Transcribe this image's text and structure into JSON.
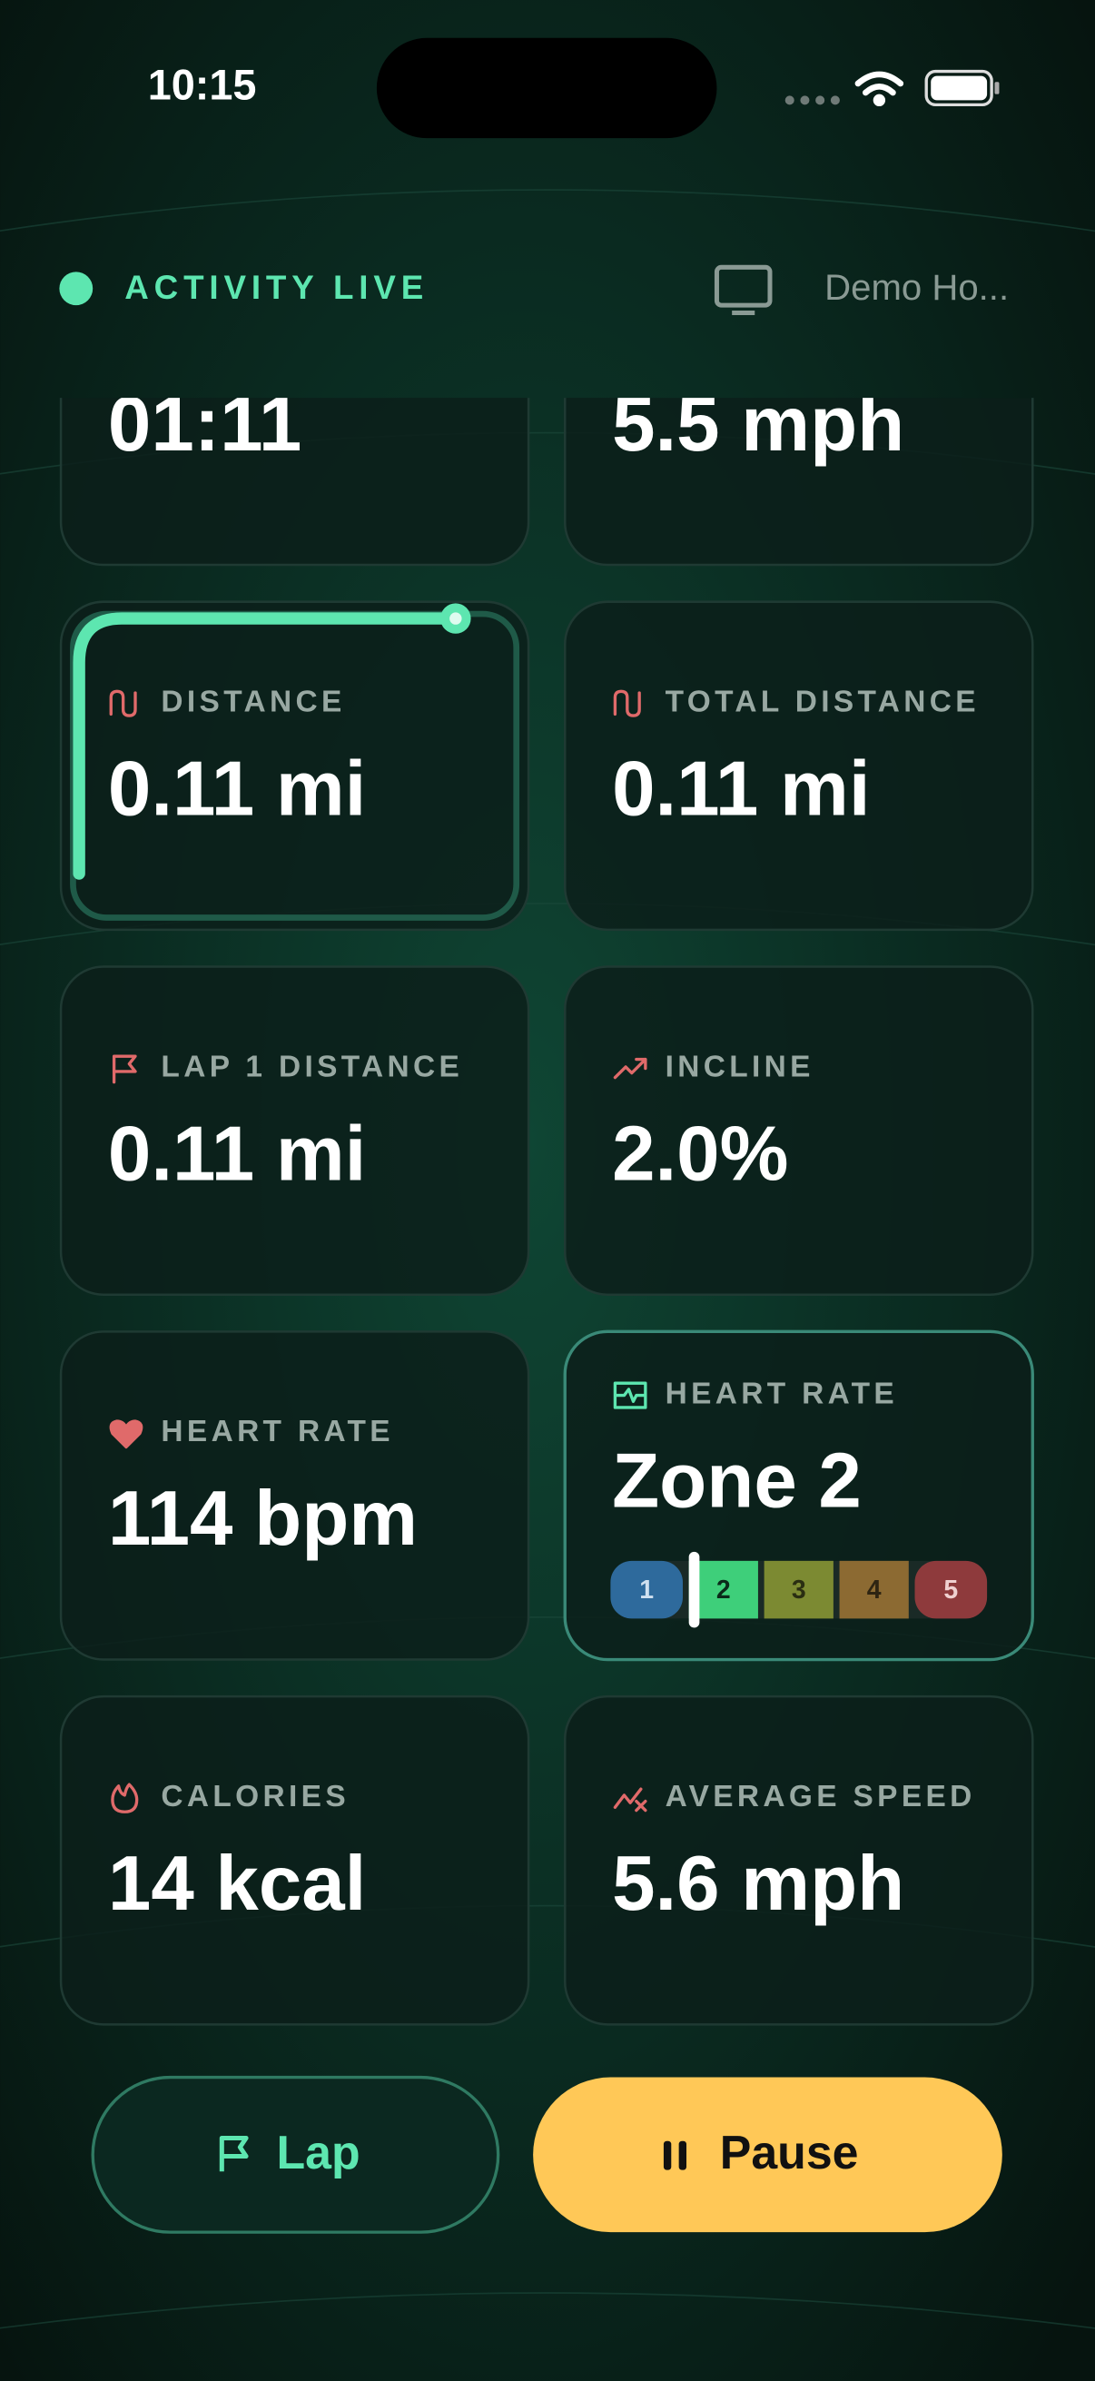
{
  "status_bar": {
    "time": "10:15"
  },
  "header": {
    "status": "ACTIVITY LIVE",
    "device": "Demo Ho..."
  },
  "tiles": [
    {
      "value": "01:11"
    },
    {
      "value": "5.5 mph"
    },
    {
      "label": "DISTANCE",
      "value": "0.11 mi"
    },
    {
      "label": "TOTAL DISTANCE",
      "value": "0.11 mi"
    },
    {
      "label": "LAP 1 DISTANCE",
      "value": "0.11 mi"
    },
    {
      "label": "INCLINE",
      "value": "2.0%"
    },
    {
      "label": "HEART RATE",
      "value": "114 bpm"
    },
    {
      "label": "HEART RATE",
      "value": "Zone 2",
      "zones": [
        "1",
        "2",
        "3",
        "4",
        "5"
      ]
    },
    {
      "label": "CALORIES",
      "value": "14 kcal"
    },
    {
      "label": "AVERAGE SPEED",
      "value": "5.6 mph"
    }
  ],
  "buttons": {
    "lap": "Lap",
    "pause": "Pause"
  }
}
